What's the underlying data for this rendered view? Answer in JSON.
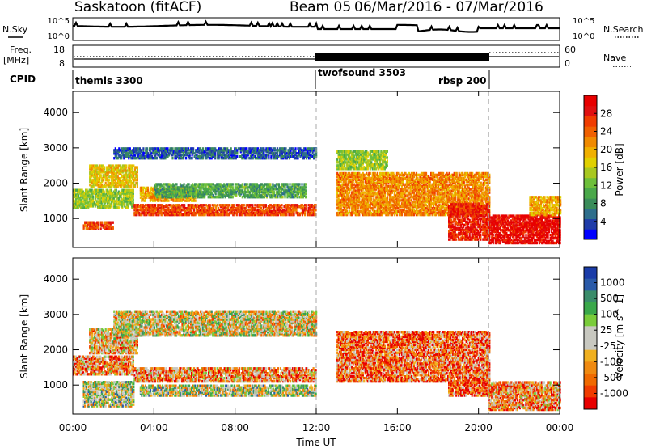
{
  "header": {
    "title": "Saskatoon (fitACF)",
    "beam": "Beam 05",
    "date_range": "06/Mar/2016 - 07/Mar/2016"
  },
  "noise_panel": {
    "left_label": "N.Sky",
    "right_label": "N.Search",
    "left_ticks": [
      "10^5",
      "10^0"
    ],
    "right_ticks": [
      "10^5",
      "10^0"
    ]
  },
  "freq_panel": {
    "left_label_1": "Freq.",
    "left_label_2": "[MHz]",
    "right_label": "Nave",
    "left_ticks": [
      "18",
      "8"
    ],
    "right_ticks": [
      "60",
      "0"
    ]
  },
  "cpid": {
    "label": "CPID",
    "segments": [
      {
        "name": "themis 3300",
        "start_hour": 0
      },
      {
        "name": "twofsound 3503",
        "start_hour": 12
      },
      {
        "name": "rbsp 200",
        "start_hour": 20.5
      }
    ]
  },
  "chart_data": [
    {
      "type": "heatmap",
      "ylabel": "Slant Range [km]",
      "yticks": [
        1000,
        2000,
        3000,
        4000
      ],
      "ylim": [
        180,
        4600
      ],
      "xlim": [
        0,
        24
      ],
      "colorbar": {
        "label": "Power [dB]",
        "ticks": [
          4,
          8,
          12,
          16,
          20,
          24,
          28
        ],
        "range": [
          0,
          32
        ],
        "colors": [
          "#0000ff",
          "#1f3ca8",
          "#2e6e8c",
          "#3a8c5a",
          "#4aa84a",
          "#6dbf3a",
          "#a8c820",
          "#e0d000",
          "#f0b000",
          "#f08a00",
          "#f06000",
          "#f03c00",
          "#e01010",
          "#e80000"
        ]
      },
      "bands": [
        {
          "start": 0.0,
          "end": 3.0,
          "low": 1300,
          "high": 1800,
          "value": 14
        },
        {
          "start": 0.5,
          "end": 2.0,
          "low": 700,
          "high": 900,
          "value": 26
        },
        {
          "start": 0.8,
          "end": 3.2,
          "low": 1900,
          "high": 2500,
          "value": 18
        },
        {
          "start": 3.0,
          "end": 12.0,
          "low": 1100,
          "high": 1400,
          "value": 26
        },
        {
          "start": 3.3,
          "end": 6.0,
          "low": 1500,
          "high": 1900,
          "value": 20
        },
        {
          "start": 2.0,
          "end": 12.0,
          "low": 2700,
          "high": 3000,
          "value": 5
        },
        {
          "start": 4.0,
          "end": 11.5,
          "low": 1600,
          "high": 2000,
          "value": 10
        },
        {
          "start": 13.0,
          "end": 20.5,
          "low": 1100,
          "high": 2300,
          "value": 22
        },
        {
          "start": 13.0,
          "end": 15.5,
          "low": 2400,
          "high": 2900,
          "value": 14
        },
        {
          "start": 18.5,
          "end": 20.5,
          "low": 400,
          "high": 1400,
          "value": 28
        },
        {
          "start": 20.5,
          "end": 24.0,
          "low": 300,
          "high": 1100,
          "value": 30
        },
        {
          "start": 22.5,
          "end": 24.0,
          "low": 1100,
          "high": 1600,
          "value": 20
        }
      ]
    },
    {
      "type": "heatmap",
      "ylabel": "Slant Range [km]",
      "xlabel": "Time UT",
      "xticks": [
        "00:00",
        "04:00",
        "08:00",
        "12:00",
        "16:00",
        "20:00",
        "00:00"
      ],
      "yticks": [
        1000,
        2000,
        3000,
        4000
      ],
      "ylim": [
        180,
        4600
      ],
      "xlim": [
        0,
        24
      ],
      "colorbar": {
        "label": "Velocity [m s^-1]",
        "ticks": [
          "1000",
          "500",
          "100",
          "25",
          "-25",
          "-100",
          "-500",
          "-1000"
        ],
        "colors": [
          "#1a3ca8",
          "#2a5aa8",
          "#3a8c6a",
          "#3aa84a",
          "#7acc3a",
          "#c8c8c0",
          "#c8c8c0",
          "#f0b020",
          "#f08a10",
          "#f06a00",
          "#f03c00",
          "#e80000"
        ]
      },
      "bands": [
        {
          "start": 0.0,
          "end": 3.0,
          "low": 1300,
          "high": 1800,
          "value": 8
        },
        {
          "start": 0.8,
          "end": 3.2,
          "low": 1900,
          "high": 2600,
          "value": 7
        },
        {
          "start": 0.5,
          "end": 3.0,
          "low": 400,
          "high": 1100,
          "value": 5
        },
        {
          "start": 3.0,
          "end": 12.0,
          "low": 1100,
          "high": 1500,
          "value": 8
        },
        {
          "start": 2.0,
          "end": 12.0,
          "low": 2400,
          "high": 3100,
          "value": 6
        },
        {
          "start": 3.3,
          "end": 12.0,
          "low": 700,
          "high": 1000,
          "value": 5
        },
        {
          "start": 13.0,
          "end": 20.5,
          "low": 1100,
          "high": 2500,
          "value": 9
        },
        {
          "start": 18.5,
          "end": 20.5,
          "low": 700,
          "high": 1100,
          "value": 10
        },
        {
          "start": 20.5,
          "end": 24.0,
          "low": 300,
          "high": 1100,
          "value": 8
        }
      ]
    }
  ]
}
